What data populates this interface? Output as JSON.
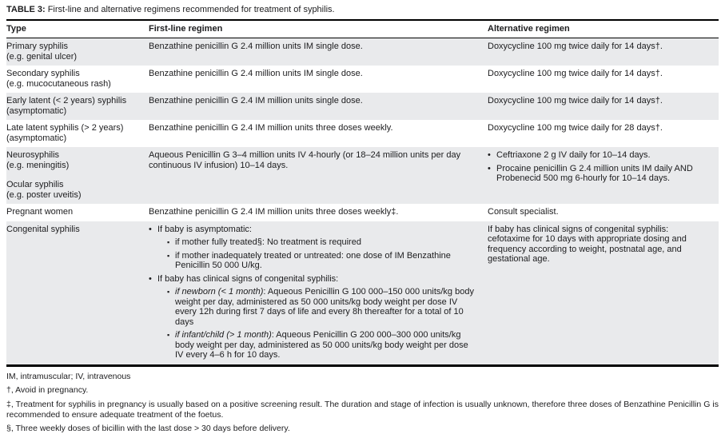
{
  "table": {
    "title_label": "TABLE 3:",
    "title_rest": "First-line and alternative regimens recommended for treatment of syphilis.",
    "headers": {
      "type": "Type",
      "first_line": "First-line regimen",
      "alternative": "Alternative regimen"
    },
    "colors": {
      "shaded_row": "#e9eaec",
      "border": "#000000",
      "text": "#1c1c1e"
    },
    "rows": [
      {
        "type1": "Primary syphilis",
        "type2": "(e.g. genital ulcer)",
        "first": "Benzathine penicillin G 2.4 million units IM single dose.",
        "alt": "Doxycycline 100 mg twice daily for 14 days†."
      },
      {
        "type1": "Secondary syphilis",
        "type2": "(e.g. mucocutaneous rash)",
        "first": "Benzathine penicillin G 2.4 million units IM single dose.",
        "alt": "Doxycycline 100 mg twice daily for 14 days†."
      },
      {
        "type1": "Early latent (< 2 years) syphilis",
        "type2": "(asymptomatic)",
        "first": "Benzathine penicillin G 2.4 IM million units single dose.",
        "alt": "Doxycycline 100 mg twice daily for 14 days†."
      },
      {
        "type1": "Late latent syphilis (> 2 years)",
        "type2": "(asymptomatic)",
        "first": "Benzathine penicillin G 2.4 IM million units three doses weekly.",
        "alt": "Doxycycline 100 mg twice daily for 28 days†."
      },
      {
        "type1": "Neurosyphilis",
        "type2": "(e.g. meningitis)",
        "type3": "Ocular syphilis",
        "type4": "(e.g. poster uveitis)",
        "first": "Aqueous Penicillin G 3–4 million units IV 4-hourly (or 18–24 million units per day continuous IV infusion) 10–14 days.",
        "alt_bullets": [
          "Ceftriaxone 2 g IV daily for 10–14 days.",
          "Procaine penicillin G 2.4 million units IM daily AND Probenecid 500 mg 6-hourly for 10–14 days."
        ]
      },
      {
        "type1": "Pregnant women",
        "first": "Benzathine penicillin G 2.4 IM million units three doses weekly‡.",
        "alt": "Consult specialist."
      },
      {
        "type1": "Congenital syphilis",
        "first_bullets": [
          {
            "text": "If baby is asymptomatic:",
            "subs": [
              {
                "lead": "",
                "rest": "if mother fully treated§: No treatment is required"
              },
              {
                "lead": "",
                "rest": "if mother inadequately treated or untreated: one dose of IM Benzathine Penicillin 50 000 U/kg."
              }
            ]
          },
          {
            "text": "If baby has clinical signs of congenital syphilis:",
            "subs": [
              {
                "lead": "if newborn (< 1 month)",
                "rest": ": Aqueous Penicillin G 100 000–150 000 units/kg body weight per day, administered as 50 000 units/kg body weight per dose IV every 12h during first 7 days of life and every 8h thereafter for a total of 10 days"
              },
              {
                "lead": "if infant/child (> 1 month)",
                "rest": ": Aqueous Penicillin G 200 000–300 000 units/kg body weight per day, administered as 50 000 units/kg body weight per dose IV every 4–6 h for 10 days."
              }
            ]
          }
        ],
        "alt": "If baby has clinical signs of congenital syphilis: cefotaxime for 10 days with appropriate dosing and frequency according to weight, postnatal age, and gestational age."
      }
    ],
    "footnotes": [
      "IM, intramuscular; IV, intravenous",
      "†, Avoid in pregnancy.",
      "‡, Treatment for syphilis in pregnancy is usually based on a positive screening result. The duration and stage of infection is usually unknown, therefore three doses of Benzathine Penicillin G is recommended to ensure adequate treatment of the foetus.",
      "§, Three weekly doses of bicillin with the last dose > 30 days before delivery."
    ]
  }
}
